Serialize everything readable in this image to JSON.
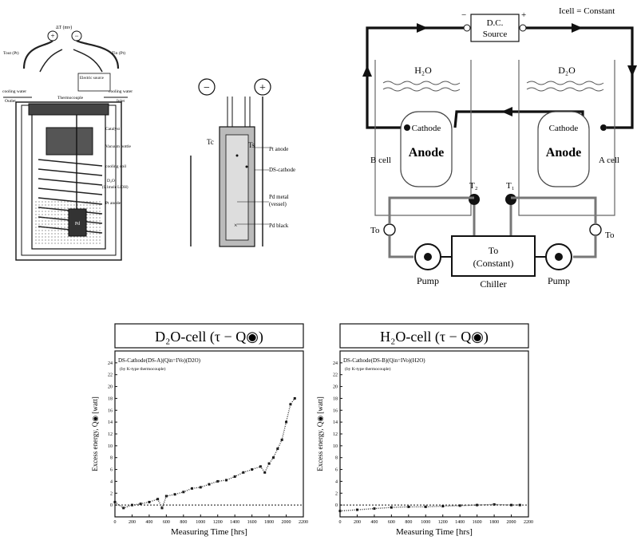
{
  "apparatus": {
    "delta_t": "ΔT (mv)",
    "plus": "+",
    "minus": "−",
    "tout": "Tout (Pt)",
    "tin": "Tin (Pt)",
    "cooling_water_left": "cooling water",
    "cooling_water_right": "cooling water",
    "outlet": "Outlet",
    "inlet": "Inlet",
    "thermocouple": "Thermocouple",
    "electric_source": "Electric source",
    "catalyst": "Catalyst",
    "vacuum_bottle": "Vacuum bottle",
    "cooling_coil": "cooling coil",
    "d2o": "D₂O",
    "d2o_conc": "(0.1mole LiOH)",
    "pt_anode": "Pt anode",
    "pd": "Pd"
  },
  "cathode_detail": {
    "minus": "−",
    "plus": "+",
    "tc": "Tc",
    "ts": "Ts",
    "pt_anode": "Pt anode",
    "ds_cathode": "DS-cathode",
    "pd_metal": "Pd metal",
    "vessel": "(vessel)",
    "pd_black": "Pd black"
  },
  "circuit": {
    "icell": "Icell = Constant",
    "source_line1": "D.C.",
    "source_line2": "Source",
    "source_minus": "−",
    "source_plus": "+",
    "h2o": "H₂O",
    "d2o": "D₂O",
    "cathode_left": "Cathode",
    "anode_left": "Anode",
    "cathode_right": "Cathode",
    "anode_right": "Anode",
    "b_cell": "B cell",
    "a_cell": "A cell",
    "t2": "T₂",
    "t1": "T₁",
    "to_left": "To",
    "to_right": "To",
    "chiller_to": "To",
    "chiller_constant": "(Constant)",
    "chiller": "Chiller",
    "pump_left": "Pump",
    "pump_right": "Pump"
  },
  "chart_data": [
    {
      "type": "scatter",
      "title": "D₂O-cell (τ − Q◉)",
      "subtitle": "DS-Cathode(DS-A)(Qin=IVo)(D2O)",
      "note": "(by K-type thermocouple)",
      "xlabel": "Measuring Time [hrs]",
      "ylabel": "Excess energy, Q◉ [watt]",
      "xlim": [
        0,
        2200
      ],
      "ylim": [
        -2,
        26
      ],
      "xticks": [
        0,
        200,
        400,
        600,
        800,
        1000,
        1200,
        1400,
        1600,
        1800,
        2000,
        2200
      ],
      "yticks": [
        0,
        2,
        4,
        6,
        8,
        10,
        12,
        14,
        16,
        18,
        20,
        22,
        24
      ],
      "baseline": 0,
      "x": [
        0,
        100,
        200,
        300,
        400,
        500,
        550,
        600,
        700,
        800,
        900,
        1000,
        1100,
        1200,
        1300,
        1400,
        1500,
        1600,
        1700,
        1750,
        1800,
        1850,
        1900,
        1950,
        2000,
        2050,
        2100
      ],
      "y": [
        0.5,
        -0.5,
        0,
        0.2,
        0.5,
        1,
        -0.5,
        1.5,
        1.8,
        2.2,
        2.8,
        3,
        3.5,
        4,
        4.2,
        4.8,
        5.5,
        6,
        6.5,
        5.5,
        7,
        8,
        9.5,
        11,
        14,
        17,
        18
      ]
    },
    {
      "type": "scatter",
      "title": "H₂O-cell (τ − Q◉)",
      "subtitle": "DS-Cathode(DS-B)(Qin=IVo)(H2O)",
      "note": "(by K-type thermocouple)",
      "xlabel": "Measuring Time [hrs]",
      "ylabel": "Excess energy, Q◉ [watt]",
      "xlim": [
        0,
        2200
      ],
      "ylim": [
        -2,
        26
      ],
      "xticks": [
        0,
        200,
        400,
        600,
        800,
        1000,
        1200,
        1400,
        1600,
        1800,
        2000,
        2200
      ],
      "yticks": [
        0,
        2,
        4,
        6,
        8,
        10,
        12,
        14,
        16,
        18,
        20,
        22,
        24
      ],
      "baseline": 0,
      "x": [
        0,
        200,
        400,
        600,
        800,
        1000,
        1200,
        1400,
        1600,
        1800,
        2000,
        2100
      ],
      "y": [
        -1,
        -0.8,
        -0.6,
        -0.4,
        -0.3,
        -0.3,
        -0.2,
        -0.1,
        0,
        0.1,
        0,
        0
      ]
    }
  ]
}
